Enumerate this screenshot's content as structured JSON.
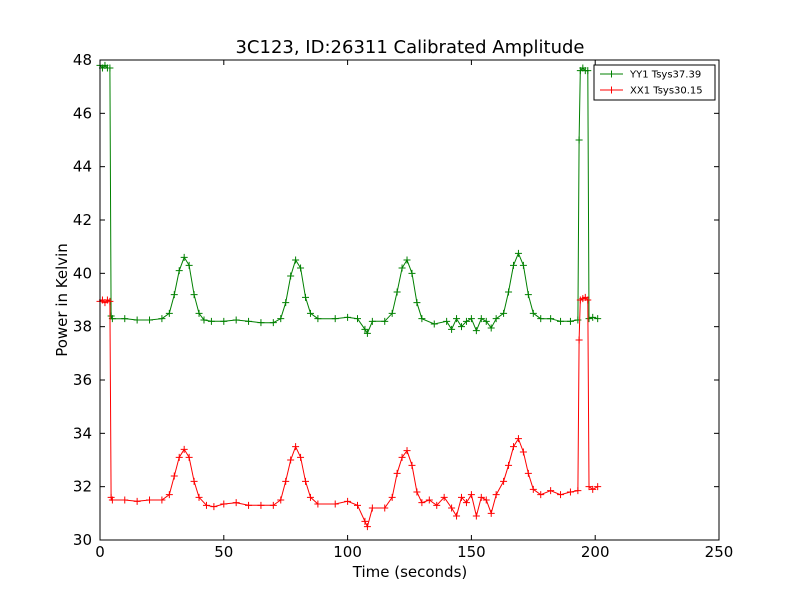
{
  "chart_data": {
    "type": "line",
    "title": "3C123, ID:26311 Calibrated Amplitude",
    "xlabel": "Time (seconds)",
    "ylabel": "Power in Kelvin",
    "xlim": [
      0,
      250
    ],
    "ylim": [
      30,
      48
    ],
    "xticks": [
      0,
      50,
      100,
      150,
      200,
      250
    ],
    "yticks": [
      30,
      32,
      34,
      36,
      38,
      40,
      42,
      44,
      46,
      48
    ],
    "grid": false,
    "legend_position": "top-right",
    "marker": "plus",
    "series": [
      {
        "name": "YY1 Tsys37.39",
        "color": "#008000",
        "points": [
          [
            0,
            47.8
          ],
          [
            1,
            47.7
          ],
          [
            2,
            47.8
          ],
          [
            3,
            47.7
          ],
          [
            4,
            47.7
          ],
          [
            4.5,
            38.4
          ],
          [
            5,
            38.3
          ],
          [
            10,
            38.3
          ],
          [
            15,
            38.25
          ],
          [
            20,
            38.25
          ],
          [
            25,
            38.3
          ],
          [
            28,
            38.5
          ],
          [
            30,
            39.2
          ],
          [
            32,
            40.1
          ],
          [
            34,
            40.6
          ],
          [
            36,
            40.3
          ],
          [
            38,
            39.2
          ],
          [
            40,
            38.5
          ],
          [
            42,
            38.25
          ],
          [
            45,
            38.2
          ],
          [
            50,
            38.2
          ],
          [
            55,
            38.25
          ],
          [
            60,
            38.2
          ],
          [
            65,
            38.15
          ],
          [
            70,
            38.15
          ],
          [
            73,
            38.3
          ],
          [
            75,
            38.9
          ],
          [
            77,
            39.9
          ],
          [
            79,
            40.5
          ],
          [
            81,
            40.2
          ],
          [
            83,
            39.1
          ],
          [
            85,
            38.5
          ],
          [
            88,
            38.3
          ],
          [
            95,
            38.3
          ],
          [
            100,
            38.35
          ],
          [
            104,
            38.3
          ],
          [
            107,
            37.9
          ],
          [
            108,
            37.75
          ],
          [
            110,
            38.2
          ],
          [
            115,
            38.2
          ],
          [
            118,
            38.5
          ],
          [
            120,
            39.3
          ],
          [
            122,
            40.2
          ],
          [
            124,
            40.5
          ],
          [
            126,
            40.0
          ],
          [
            128,
            38.9
          ],
          [
            130,
            38.3
          ],
          [
            135,
            38.1
          ],
          [
            140,
            38.2
          ],
          [
            142,
            37.9
          ],
          [
            144,
            38.3
          ],
          [
            146,
            38.0
          ],
          [
            148,
            38.2
          ],
          [
            150,
            38.3
          ],
          [
            152,
            37.85
          ],
          [
            154,
            38.3
          ],
          [
            156,
            38.2
          ],
          [
            158,
            37.95
          ],
          [
            160,
            38.3
          ],
          [
            163,
            38.5
          ],
          [
            165,
            39.3
          ],
          [
            167,
            40.3
          ],
          [
            169,
            40.75
          ],
          [
            171,
            40.3
          ],
          [
            173,
            39.2
          ],
          [
            175,
            38.5
          ],
          [
            178,
            38.3
          ],
          [
            182,
            38.3
          ],
          [
            186,
            38.2
          ],
          [
            190,
            38.2
          ],
          [
            193,
            38.25
          ],
          [
            193.5,
            45.0
          ],
          [
            194,
            47.6
          ],
          [
            195,
            47.7
          ],
          [
            196,
            47.6
          ],
          [
            197,
            47.6
          ],
          [
            197.5,
            38.3
          ],
          [
            199,
            38.35
          ],
          [
            201,
            38.3
          ]
        ]
      },
      {
        "name": "XX1 Tsys30.15",
        "color": "#ff0000",
        "points": [
          [
            0,
            38.95
          ],
          [
            1,
            39.0
          ],
          [
            2,
            38.9
          ],
          [
            3,
            39.0
          ],
          [
            4,
            38.95
          ],
          [
            4.5,
            31.6
          ],
          [
            5,
            31.5
          ],
          [
            10,
            31.5
          ],
          [
            15,
            31.45
          ],
          [
            20,
            31.5
          ],
          [
            25,
            31.5
          ],
          [
            28,
            31.7
          ],
          [
            30,
            32.4
          ],
          [
            32,
            33.1
          ],
          [
            34,
            33.4
          ],
          [
            36,
            33.1
          ],
          [
            38,
            32.2
          ],
          [
            40,
            31.6
          ],
          [
            43,
            31.3
          ],
          [
            46,
            31.25
          ],
          [
            50,
            31.35
          ],
          [
            55,
            31.4
          ],
          [
            60,
            31.3
          ],
          [
            65,
            31.3
          ],
          [
            70,
            31.3
          ],
          [
            73,
            31.5
          ],
          [
            75,
            32.2
          ],
          [
            77,
            33.0
          ],
          [
            79,
            33.5
          ],
          [
            81,
            33.1
          ],
          [
            83,
            32.2
          ],
          [
            85,
            31.6
          ],
          [
            88,
            31.35
          ],
          [
            95,
            31.35
          ],
          [
            100,
            31.45
          ],
          [
            104,
            31.3
          ],
          [
            107,
            30.7
          ],
          [
            108,
            30.5
          ],
          [
            110,
            31.2
          ],
          [
            115,
            31.2
          ],
          [
            118,
            31.6
          ],
          [
            120,
            32.5
          ],
          [
            122,
            33.1
          ],
          [
            124,
            33.35
          ],
          [
            126,
            32.8
          ],
          [
            128,
            31.8
          ],
          [
            130,
            31.4
          ],
          [
            133,
            31.5
          ],
          [
            136,
            31.3
          ],
          [
            139,
            31.6
          ],
          [
            142,
            31.2
          ],
          [
            144,
            30.9
          ],
          [
            146,
            31.6
          ],
          [
            148,
            31.4
          ],
          [
            150,
            31.7
          ],
          [
            152,
            30.9
          ],
          [
            154,
            31.6
          ],
          [
            156,
            31.5
          ],
          [
            158,
            31.0
          ],
          [
            160,
            31.7
          ],
          [
            163,
            32.2
          ],
          [
            165,
            32.8
          ],
          [
            167,
            33.5
          ],
          [
            169,
            33.8
          ],
          [
            171,
            33.3
          ],
          [
            173,
            32.5
          ],
          [
            175,
            31.9
          ],
          [
            178,
            31.7
          ],
          [
            182,
            31.85
          ],
          [
            186,
            31.7
          ],
          [
            190,
            31.8
          ],
          [
            193,
            31.85
          ],
          [
            193.5,
            37.5
          ],
          [
            194,
            39.0
          ],
          [
            195,
            39.05
          ],
          [
            196,
            39.1
          ],
          [
            197,
            39.0
          ],
          [
            197.5,
            32.0
          ],
          [
            199,
            31.9
          ],
          [
            201,
            32.0
          ]
        ]
      }
    ]
  }
}
